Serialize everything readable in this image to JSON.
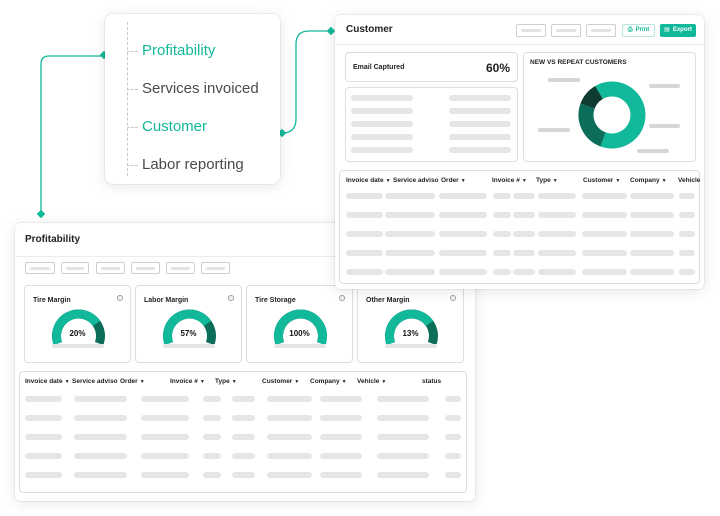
{
  "nav": {
    "items": [
      {
        "label": "Profitability",
        "active": true
      },
      {
        "label": "Services invoiced",
        "active": false
      },
      {
        "label": "Customer",
        "active": true
      },
      {
        "label": "Labor reporting",
        "active": false
      }
    ]
  },
  "colors": {
    "accent": "#12b89a",
    "accent_dark": "#0b6d5a",
    "darkest": "#0f3b31",
    "placeholder": "#e6e6e6"
  },
  "profitability": {
    "title": "Profitability",
    "gauges": [
      {
        "title": "Tire Margin",
        "value": "20%",
        "fraction": 0.2
      },
      {
        "title": "Labor Margin",
        "value": "57%",
        "fraction": 0.57
      },
      {
        "title": "Tire Storage",
        "value": "100%",
        "fraction": 1.0
      },
      {
        "title": "Other Margin",
        "value": "13%",
        "fraction": 0.13
      }
    ],
    "table_headers": [
      "Invoice date",
      "Service adviso",
      "Order",
      "Invoice #",
      "Type",
      "Customer",
      "Company",
      "Vehicle",
      "status"
    ]
  },
  "customer": {
    "title": "Customer",
    "print_label": "Print",
    "export_label": "Export",
    "email_captured_label": "Email Captured",
    "email_captured_value": "60%",
    "donut_title": "NEW VS REPEAT CUSTOMERS",
    "table_headers": [
      "Invoice date",
      "Service adviso",
      "Order",
      "Invoice #",
      "Type",
      "Customer",
      "Company",
      "Vehicle"
    ]
  }
}
